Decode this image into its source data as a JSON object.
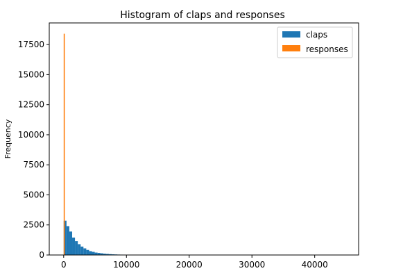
{
  "chart_data": {
    "type": "bar",
    "title": "Histogram of claps and responses",
    "xlabel": "",
    "ylabel": "Frequency",
    "xlim": [
      -2300,
      47000
    ],
    "ylim": [
      0,
      19300
    ],
    "xticks": [
      0,
      10000,
      20000,
      30000,
      40000
    ],
    "yticks": [
      0,
      2500,
      5000,
      7500,
      10000,
      12500,
      15000,
      17500
    ],
    "grid": false,
    "legend_position": "top-right",
    "series": [
      {
        "name": "claps",
        "color": "#1f77b4",
        "bin_width": 450,
        "bin_start": 0,
        "values": [
          2850,
          2400,
          1950,
          1450,
          1150,
          900,
          700,
          550,
          420,
          320,
          260,
          200,
          170,
          140,
          110,
          90,
          70,
          55,
          45,
          35,
          30,
          25,
          20,
          15,
          12,
          10,
          8,
          6,
          5,
          4
        ]
      },
      {
        "name": "responses",
        "color": "#ff7f0e",
        "bin_width": 180,
        "bin_start": 0,
        "values": [
          18400
        ]
      }
    ]
  }
}
